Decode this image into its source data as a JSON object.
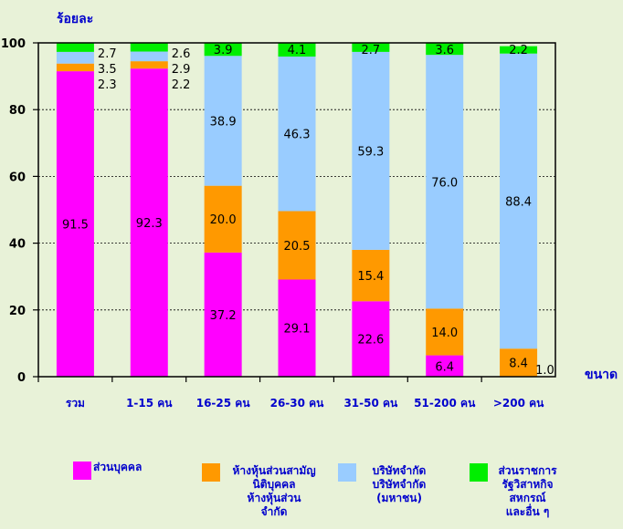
{
  "chart_data": {
    "type": "bar",
    "stacked": true,
    "ylabel": "ร้อยละ",
    "xlabel": "ขนาด",
    "ylim": [
      0,
      100
    ],
    "yticks": [
      0,
      20,
      40,
      60,
      80,
      100
    ],
    "categories": [
      "รวม",
      "1-15 คน",
      "16-25 คน",
      "26-30 คน",
      "31-50 คน",
      "51-200 คน",
      ">200 คน"
    ],
    "series": [
      {
        "name": "ส่วนบุคคล",
        "color": "#ff00ff",
        "values": [
          91.5,
          92.3,
          37.2,
          29.1,
          22.6,
          6.4,
          0.0
        ],
        "labels": [
          "91.5",
          "92.3",
          "37.2",
          "29.1",
          "22.6",
          "6.4",
          ""
        ]
      },
      {
        "name": "ห้างหุ้นส่วนสามัญ นิติบุคคล ห้างหุ้นส่วน จำกัด",
        "color": "#ff9900",
        "values": [
          2.3,
          2.2,
          20.0,
          20.5,
          15.4,
          14.0,
          8.4
        ],
        "labels": [
          "2.3",
          "2.2",
          "20.0",
          "20.5",
          "15.4",
          "14.0",
          "8.4"
        ]
      },
      {
        "name": "บริษัทจำกัด บริษัทจำกัด (มหาชน)",
        "color": "#99ccff",
        "values": [
          3.5,
          2.9,
          38.9,
          46.3,
          59.3,
          76.0,
          88.4
        ],
        "labels": [
          "3.5",
          "2.9",
          "38.9",
          "46.3",
          "59.3",
          "76.0",
          "88.4"
        ]
      },
      {
        "name": "ส่วนราชการ รัฐวิสาหกิจ สหกรณ์ และอื่น ๆ",
        "color": "#00ee00",
        "values": [
          2.7,
          2.6,
          3.9,
          4.1,
          2.7,
          3.6,
          2.2
        ],
        "labels": [
          "2.7",
          "2.6",
          "3.9",
          "4.1",
          "2.7",
          "3.6",
          "2.2"
        ]
      }
    ],
    "extra_labels": [
      "1.0"
    ],
    "grid": true,
    "legend_position": "bottom"
  },
  "legend": [
    {
      "lines": [
        "ส่วนบุคคล"
      ]
    },
    {
      "lines": [
        "ห้างหุ้นส่วนสามัญ",
        "นิติบุคคล",
        "ห้างหุ้นส่วน",
        "จำกัด"
      ]
    },
    {
      "lines": [
        "บริษัทจำกัด",
        "บริษัทจำกัด",
        "(มหาชน)"
      ]
    },
    {
      "lines": [
        "ส่วนราชการ",
        "รัฐวิสาหกิจ",
        "สหกรณ์",
        "และอื่น ๆ"
      ]
    }
  ]
}
